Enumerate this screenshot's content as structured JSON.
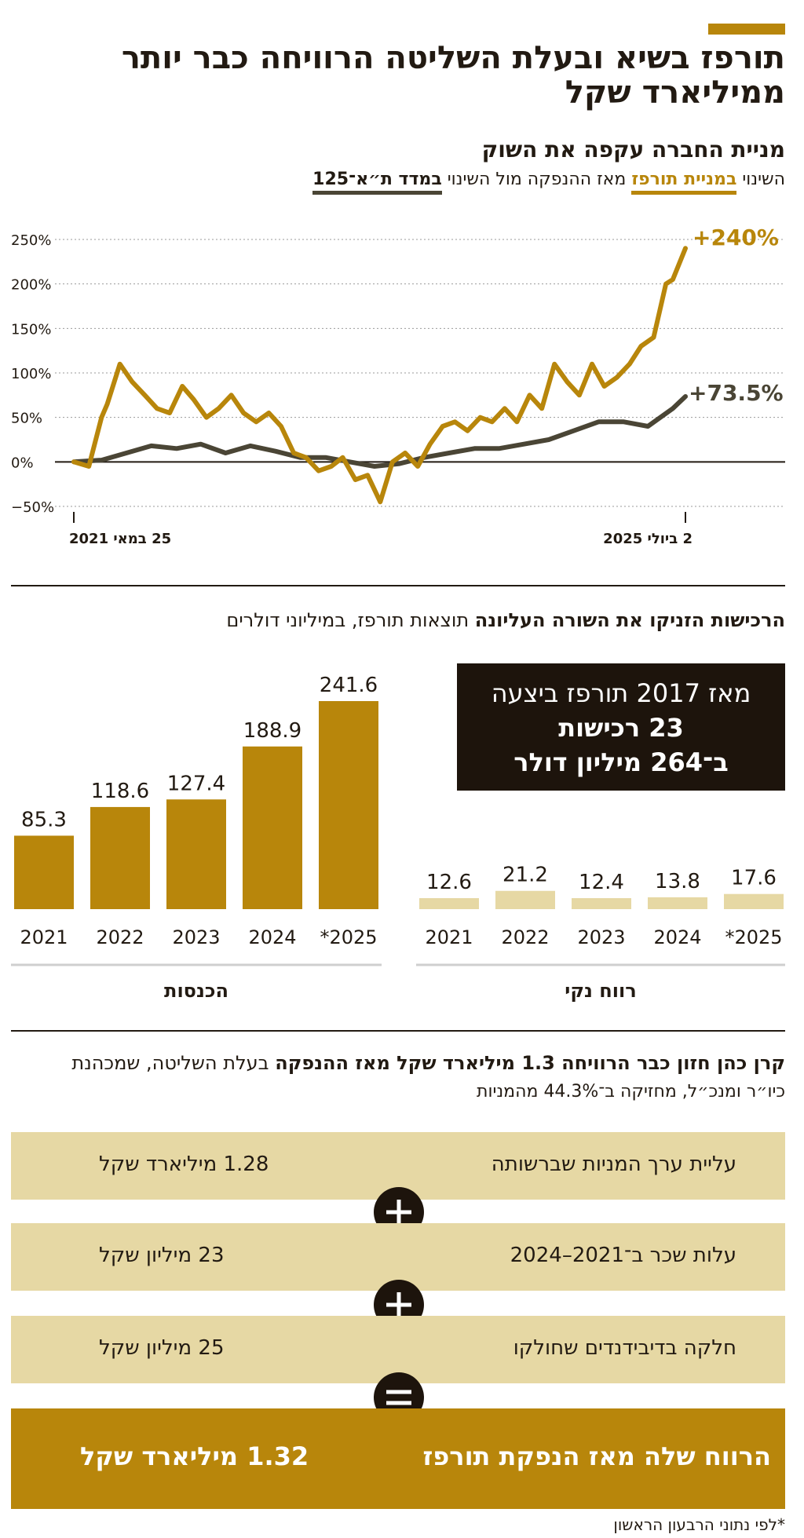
{
  "header": {
    "title": "תורפז בשיא ובעלת השליטה הרוויחה כבר יותר ממיליארד שקל"
  },
  "stock_section": {
    "title": "מניית החברה עקפה את השוק",
    "legend_prefix": "השינוי",
    "legend_series1": "במניית תורפז",
    "legend_middle": "מאז ההנפקה מול השינוי",
    "legend_series2": "במדד ת״א־125",
    "end_label_1": "+240%",
    "end_label_2": "+73.5%",
    "x_start_label": "25 במאי 2021",
    "x_end_label": "2 ביולי 2025"
  },
  "results_section": {
    "title_bold": "הרכישות הזניקו את השורה העליונה",
    "title_rest": "תוצאות תורפז, במיליוני דולרים",
    "box_line1": "מאז 2017 תורפז ביצעה",
    "box_line2": "23 רכישות",
    "box_line3": "ב־264 מיליון דולר",
    "revenue_label": "הכנסות",
    "profit_label": "רווח נקי"
  },
  "owner_section": {
    "title_bold": "קרן כהן חזון כבר הרוויחה 1.3 מיליארד שקל מאז ההנפקה",
    "title_rest": "בעלת השליטה, שמכהנת",
    "title_line2": "כיו״ר ומנכ״ל, מחזיקה ב־44.3% מהמניות",
    "rows": [
      {
        "label": "עליית ערך המניות שברשותה",
        "value": "1.28 מיליארד שקל"
      },
      {
        "label": "עלות שכר ב־2021–2024",
        "value": "23 מיליון שקל"
      },
      {
        "label": "חלקה בדיבידנדים שחולקו",
        "value": "25 מיליון שקל"
      }
    ],
    "operators": [
      "plus",
      "plus",
      "equals"
    ],
    "result_label": "הרווח שלה מאז הנפקת תורפז",
    "result_value": "1.32 מיליארד שקל"
  },
  "footnote": "*לפי נתוני הרבעון הראשון",
  "colors": {
    "gold": "#b8860b",
    "dark": "#4a4535",
    "light_gold": "#e6d8a4",
    "box_dark": "#1d140c"
  },
  "chart_data": [
    {
      "type": "line",
      "title": "מניית החברה עקפה את השוק",
      "ylabel": "",
      "xlabel": "",
      "ylim": [
        -50,
        250
      ],
      "y_ticks": [
        "250%",
        "200%",
        "150%",
        "100%",
        "50%",
        "0%",
        "−50%"
      ],
      "x_range": [
        "2021-05-25",
        "2025-07-02"
      ],
      "grid": true,
      "series": [
        {
          "name": "מניית תורפז",
          "color": "#b8860b",
          "x": [
            "2021-05-25",
            "2021-07-01",
            "2021-08-01",
            "2021-08-15",
            "2021-09-15",
            "2021-10-15",
            "2021-11-15",
            "2021-12-15",
            "2022-01-15",
            "2022-02-15",
            "2022-03-15",
            "2022-04-15",
            "2022-05-15",
            "2022-06-15",
            "2022-07-15",
            "2022-08-15",
            "2022-09-15",
            "2022-10-15",
            "2022-11-15",
            "2022-12-15",
            "2023-01-15",
            "2023-02-15",
            "2023-03-15",
            "2023-04-15",
            "2023-05-15",
            "2023-06-15",
            "2023-07-15",
            "2023-08-15",
            "2023-09-15",
            "2023-10-15",
            "2023-11-15",
            "2023-12-15",
            "2024-01-15",
            "2024-02-15",
            "2024-03-15",
            "2024-04-15",
            "2024-05-15",
            "2024-06-15",
            "2024-07-15",
            "2024-08-15",
            "2024-09-15",
            "2024-10-15",
            "2024-11-15",
            "2024-12-15",
            "2025-01-15",
            "2025-02-15",
            "2025-03-15",
            "2025-04-15",
            "2025-05-15",
            "2025-06-01",
            "2025-07-02"
          ],
          "values": [
            0,
            -5,
            50,
            65,
            110,
            90,
            75,
            60,
            55,
            85,
            70,
            50,
            60,
            75,
            55,
            45,
            55,
            40,
            10,
            5,
            -10,
            -5,
            5,
            -20,
            -15,
            -45,
            0,
            10,
            -5,
            20,
            40,
            45,
            35,
            50,
            45,
            60,
            45,
            75,
            60,
            110,
            90,
            75,
            110,
            85,
            95,
            110,
            130,
            140,
            200,
            205,
            240
          ]
        },
        {
          "name": "מדד ת״א־125",
          "color": "#4a4535",
          "x": [
            "2021-05-25",
            "2021-08-01",
            "2021-10-01",
            "2021-12-01",
            "2022-02-01",
            "2022-04-01",
            "2022-06-01",
            "2022-08-01",
            "2022-10-01",
            "2022-12-01",
            "2023-02-01",
            "2023-04-01",
            "2023-06-01",
            "2023-08-01",
            "2023-10-01",
            "2023-12-01",
            "2024-02-01",
            "2024-04-01",
            "2024-06-01",
            "2024-08-01",
            "2024-10-01",
            "2024-12-01",
            "2025-02-01",
            "2025-04-01",
            "2025-06-01",
            "2025-07-02"
          ],
          "values": [
            0,
            2,
            10,
            18,
            15,
            20,
            10,
            18,
            12,
            5,
            5,
            0,
            -5,
            -2,
            5,
            10,
            15,
            15,
            20,
            25,
            35,
            45,
            45,
            40,
            60,
            73.5
          ]
        }
      ]
    },
    {
      "type": "bar",
      "title": "הכנסות",
      "categories": [
        "2021",
        "2022",
        "2023",
        "2024",
        "*2025"
      ],
      "values": [
        85.3,
        118.6,
        127.4,
        188.9,
        241.6
      ],
      "color": "#b8860b"
    },
    {
      "type": "bar",
      "title": "רווח נקי",
      "categories": [
        "2021",
        "2022",
        "2023",
        "2024",
        "*2025"
      ],
      "values": [
        12.6,
        21.2,
        12.4,
        13.8,
        17.6
      ],
      "color": "#e6d8a4"
    }
  ]
}
